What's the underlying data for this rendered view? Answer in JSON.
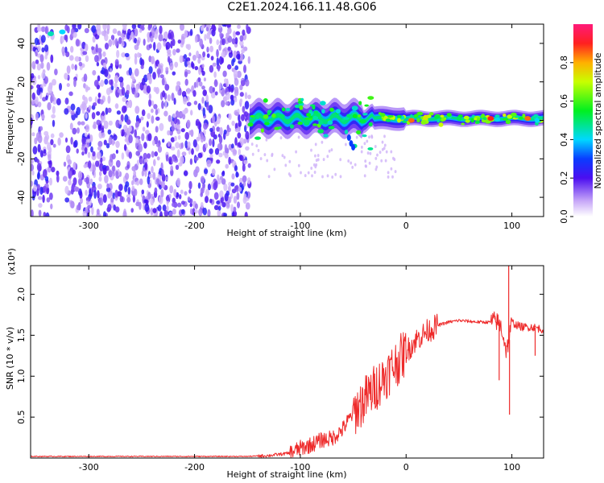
{
  "title": "C2E1.2024.166.11.48.G06",
  "colors": {
    "snr_line": "#ee2a2a",
    "scatter_noise": "#6a1ee8",
    "scatter_faint": "#c9b5f3"
  },
  "chart_data": [
    {
      "type": "heatmap",
      "xlabel": "Height of straight line (km)",
      "ylabel": "Frequency (Hz)",
      "xlim": [
        -355,
        130
      ],
      "ylim": [
        -50,
        50
      ],
      "xticks": [
        -300,
        -200,
        -100,
        0,
        100
      ],
      "yticks": [
        -40,
        -20,
        0,
        20,
        40
      ],
      "colorbar": {
        "label": "Normalized spectral amplitude",
        "range": [
          0.0,
          1.0
        ],
        "ticks": [
          0.0,
          0.2,
          0.4,
          0.6,
          0.8
        ],
        "colormap": "white-purple-blue-cyan-green-yellow-red-pink"
      },
      "features": {
        "noise_region_x": [
          -355,
          -148
        ],
        "signal_band_x": [
          -148,
          130
        ],
        "signal_band_center_hz": 1,
        "high_amplitude_points": [
          {
            "x": -336,
            "y": 45,
            "amp": 0.45
          },
          {
            "x": -325,
            "y": 46,
            "amp": 0.4
          },
          {
            "x": 5,
            "y": 0,
            "amp": 0.85
          },
          {
            "x": 80,
            "y": 1,
            "amp": 0.9
          },
          {
            "x": 115,
            "y": 1,
            "amp": 0.85
          }
        ]
      }
    },
    {
      "type": "line",
      "xlabel": "Height of straight line (km)",
      "ylabel": "SNR (10 * v/v)",
      "yscale_label": "(x10⁴)",
      "xlim": [
        -355,
        130
      ],
      "ylim": [
        0,
        2.35
      ],
      "xticks": [
        -300,
        -200,
        -100,
        0,
        100
      ],
      "yticks": [
        0.5,
        1.0,
        1.5,
        2.0
      ],
      "series": [
        {
          "x": [
            -355,
            -300,
            -250,
            -200,
            -150,
            -130,
            -110,
            -100,
            -90,
            -80,
            -70,
            -60,
            -50,
            -40,
            -30,
            -20,
            -10,
            0,
            10,
            20,
            30,
            40,
            50,
            60,
            70,
            80,
            85,
            90,
            95,
            100,
            105,
            110,
            115,
            120,
            130
          ],
          "values": [
            0.02,
            0.02,
            0.02,
            0.02,
            0.02,
            0.03,
            0.06,
            0.12,
            0.16,
            0.22,
            0.24,
            0.35,
            0.55,
            0.7,
            0.85,
            1.0,
            1.15,
            1.3,
            1.45,
            1.55,
            1.62,
            1.66,
            1.68,
            1.67,
            1.66,
            1.66,
            1.68,
            1.6,
            1.3,
            1.66,
            1.62,
            1.6,
            1.6,
            1.6,
            1.57
          ]
        }
      ],
      "annotations": {
        "spike_max": {
          "x": 97,
          "y": 2.35
        },
        "spike_min": {
          "x": 97,
          "y": 0.53
        },
        "dip_x88": {
          "x": 88,
          "y": 0.95
        },
        "dip_x122": {
          "x": 122,
          "y": 1.25
        }
      }
    }
  ]
}
